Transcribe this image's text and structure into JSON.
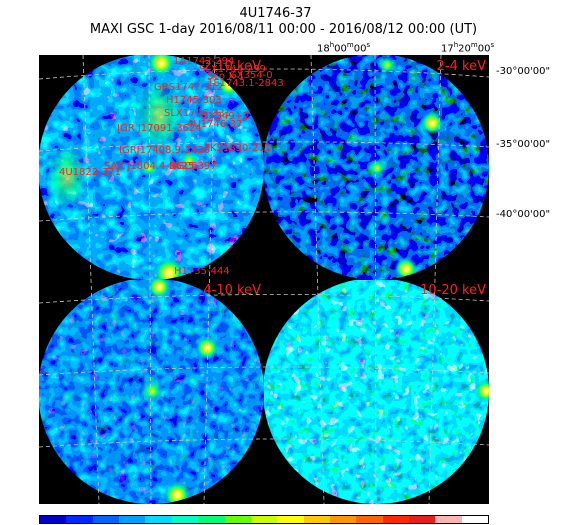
{
  "header": {
    "title": "4U1746-37",
    "subtitle": "MAXI GSC 1-day 2016/08/11 00:00 - 2016/08/12 00:00 (UT)"
  },
  "ra_labels": [
    "18h00m00s",
    "17h20m00s"
  ],
  "dec_labels": [
    "-30°00'00\"",
    "-35°00'00\"",
    "-40°00'00\""
  ],
  "panels": [
    {
      "band": "2-10 keV",
      "label": "2-10 keV"
    },
    {
      "band": "2-4 keV",
      "label": "2-4 keV"
    },
    {
      "band": "4-10 keV",
      "label": "4-10 keV"
    },
    {
      "band": "10-20 keV",
      "label": "10-20 keV"
    }
  ],
  "sources": [
    "1A1742-294",
    "SLX1744-299",
    "Sco X-1",
    "GX354-0",
    "1E1743.1-2843",
    "GRS1747-312",
    "H1745-303",
    "SLX1746-331",
    "GX349+2",
    "IGR J17091-3624",
    "4U1746-37",
    "PKS1830-211",
    "IGRJ17408.9-3426",
    "4U1822-371",
    "SAX J1804.4-3625",
    "NGC6397",
    "H1735-444"
  ],
  "colorbar": {
    "colors": [
      "#0000c8",
      "#0028ff",
      "#0064ff",
      "#00a0ff",
      "#00dcff",
      "#00ffc8",
      "#00ff78",
      "#64ff00",
      "#c8ff00",
      "#ffff00",
      "#ffc800",
      "#ff9600",
      "#ff6400",
      "#ff2800",
      "#e61e1e",
      "#ffb4b4",
      "#ffffff"
    ]
  },
  "colors": {
    "label_red": "#ff2020",
    "grid": "#c8c8c8",
    "background": "#000000"
  }
}
